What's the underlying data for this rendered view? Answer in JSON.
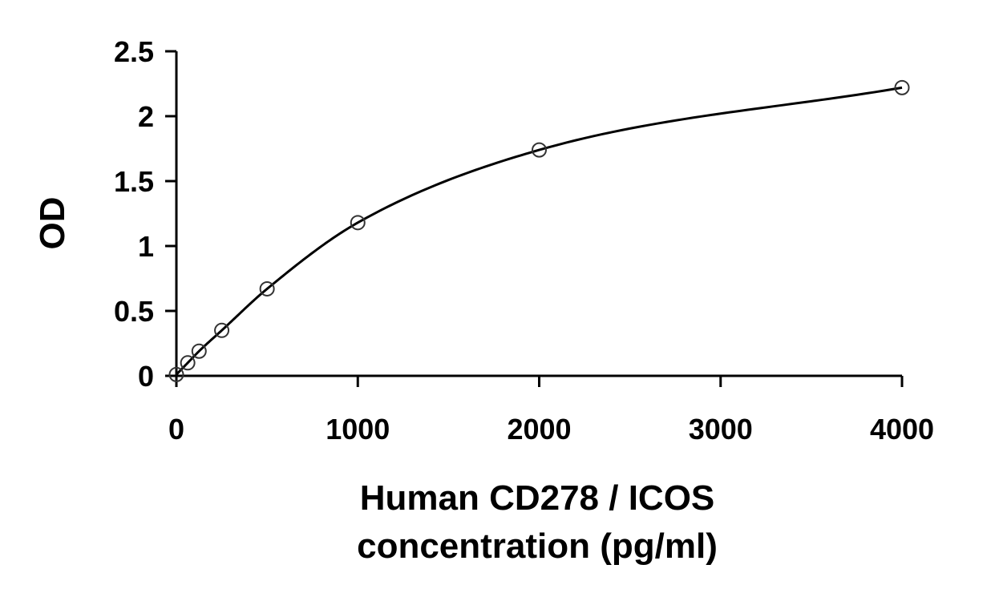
{
  "chart_data": {
    "type": "scatter",
    "title": "",
    "xlabel_lines": [
      "Human CD278 / ICOS",
      "concentration (pg/ml)"
    ],
    "ylabel": "OD",
    "xlim": [
      0,
      4000
    ],
    "ylim": [
      0,
      2.5
    ],
    "x_ticks": [
      0,
      1000,
      2000,
      3000,
      4000
    ],
    "x_tick_labels": [
      "0",
      "1000",
      "2000",
      "3000",
      "4000"
    ],
    "y_ticks": [
      0,
      0.5,
      1,
      1.5,
      2,
      2.5
    ],
    "y_tick_labels": [
      "0",
      "0.5",
      "1",
      "1.5",
      "2",
      "2.5"
    ],
    "grid": false,
    "legend": false,
    "series": [
      {
        "x": [
          0,
          62.5,
          125,
          250,
          500,
          1000,
          2000,
          4000
        ],
        "y": [
          0.01,
          0.1,
          0.19,
          0.35,
          0.67,
          1.18,
          1.74,
          2.22
        ],
        "marker": "open-circle",
        "fit_line": "smooth-curve",
        "color": "#000000"
      }
    ]
  }
}
